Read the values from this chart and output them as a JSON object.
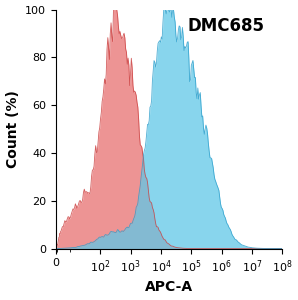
{
  "title": "DMC685",
  "xlabel": "APC-A",
  "ylabel": "Count (%)",
  "ylim": [
    0,
    100
  ],
  "yticks": [
    0,
    20,
    40,
    60,
    80,
    100
  ],
  "red_color": "#E87070",
  "red_edge_color": "#CC4444",
  "blue_color": "#60C8E8",
  "blue_edge_color": "#30A0CC",
  "red_alpha": 0.75,
  "blue_alpha": 0.75,
  "background_color": "#ffffff",
  "title_fontsize": 12,
  "axis_label_fontsize": 10,
  "tick_fontsize": 8,
  "red_peak_log": 2.75,
  "red_spread": 0.55,
  "blue_peak_log": 4.7,
  "blue_spread": 0.7,
  "red_noise_scale": 0.12,
  "blue_noise_scale": 0.1
}
